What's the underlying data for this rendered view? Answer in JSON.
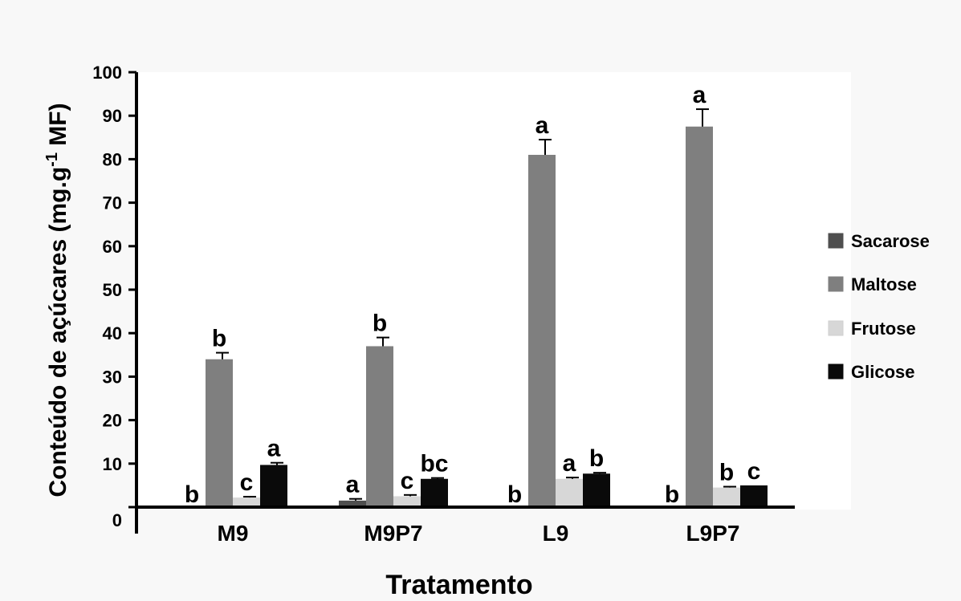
{
  "chart_data": {
    "type": "bar",
    "xlabel": "Tratamento",
    "ylabel": "Conteúdo de açúcares (mg.g",
    "ylabel_superscript": "-1",
    "ylabel_tail": " MF)",
    "ylim": [
      0,
      100
    ],
    "yticks": [
      0,
      10,
      20,
      30,
      40,
      50,
      60,
      70,
      80,
      90,
      100
    ],
    "yticklabels": [
      "0",
      "10",
      "20",
      "30",
      "40",
      "50",
      "60",
      "70",
      "80",
      "90",
      "100"
    ],
    "categories": [
      "M9",
      "M9P7",
      "L9",
      "L9P7"
    ],
    "series": [
      {
        "name": "Sacarose",
        "color": "#4f4f4f",
        "values": [
          0,
          1.5,
          0,
          0
        ],
        "errors": [
          0,
          0.4,
          0,
          0
        ],
        "labels": [
          "b",
          "a",
          "b",
          "b"
        ]
      },
      {
        "name": "Maltose",
        "color": "#7f7f7f",
        "values": [
          34,
          37,
          81,
          87.5
        ],
        "errors": [
          1.5,
          2,
          3.5,
          4
        ],
        "labels": [
          "b",
          "b",
          "a",
          "a"
        ]
      },
      {
        "name": "Frutose",
        "color": "#d7d7d7",
        "values": [
          2.2,
          2.5,
          6.5,
          4.5
        ],
        "errors": [
          0.2,
          0.3,
          0.3,
          0.2
        ],
        "labels": [
          "c",
          "c",
          "a",
          "b"
        ]
      },
      {
        "name": "Glicose",
        "color": "#0a0a0a",
        "values": [
          9.7,
          6.5,
          7.7,
          5
        ],
        "errors": [
          0.5,
          0.2,
          0.2,
          0
        ],
        "labels": [
          "a",
          "bc",
          "b",
          "c"
        ]
      }
    ],
    "legend_position": "right",
    "grid": false
  }
}
